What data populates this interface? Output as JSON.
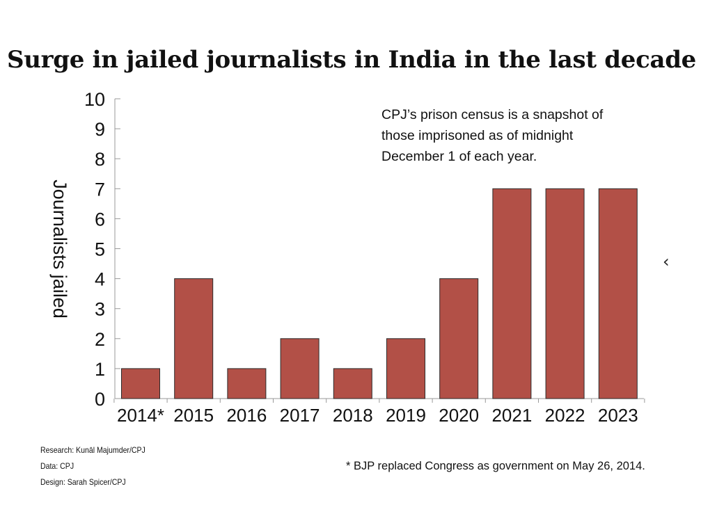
{
  "title": "Surge in jailed journalists in India in the last decade",
  "note": {
    "lines": [
      "CPJ’s prison census is a snapshot of",
      "those imprisoned as of midnight",
      "December 1 of each year."
    ]
  },
  "credits": {
    "research": "Research: Kunāl Majumder/CPJ",
    "data": "Data: CPJ",
    "design": "Design: Sarah Spicer/CPJ"
  },
  "footnote": "* BJP replaced Congress as government on May 26, 2014.",
  "nav": {
    "icon": "chevron-left-icon",
    "glyph": "‹"
  },
  "colors": {
    "bar": "#b25047",
    "bar_stroke": "#2b2b2b",
    "axis": "#999999",
    "text": "#111111"
  },
  "chart_data": {
    "type": "bar",
    "title": "Surge in jailed journalists in India in the last decade",
    "xlabel": "",
    "ylabel": "Journalists jailed",
    "categories": [
      "2014*",
      "2015",
      "2016",
      "2017",
      "2018",
      "2019",
      "2020",
      "2021",
      "2022",
      "2023"
    ],
    "values": [
      1,
      4,
      1,
      2,
      1,
      2,
      4,
      7,
      7,
      7
    ],
    "ylim": [
      0,
      10
    ],
    "yticks": [
      0,
      1,
      2,
      3,
      4,
      5,
      6,
      7,
      8,
      9,
      10
    ],
    "grid": false,
    "legend": "none"
  }
}
